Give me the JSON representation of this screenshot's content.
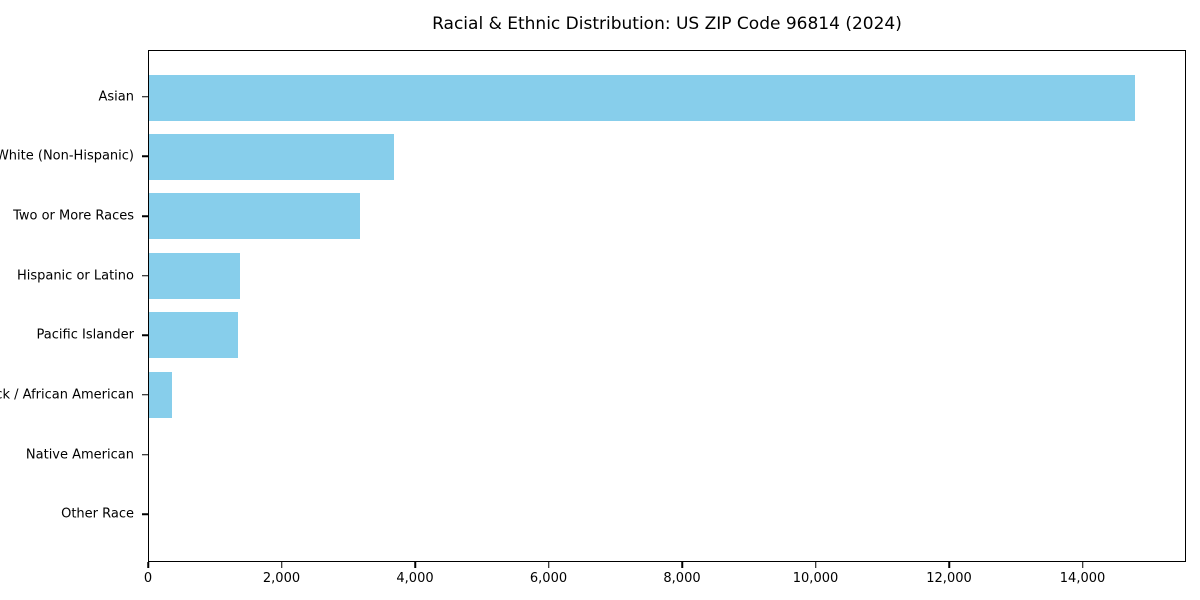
{
  "title": "Racial & Ethnic Distribution: US ZIP Code 96814 (2024)",
  "chart_data": {
    "type": "bar",
    "orientation": "horizontal",
    "title": "Racial & Ethnic Distribution: US ZIP Code 96814 (2024)",
    "categories": [
      "Asian",
      "White (Non-Hispanic)",
      "Two or More Races",
      "Hispanic or Latino",
      "Pacific Islander",
      "Black / African American",
      "Native American",
      "Other Race"
    ],
    "values": [
      14800,
      3670,
      3160,
      1370,
      1330,
      350,
      0,
      0
    ],
    "xlabel": "",
    "ylabel": "",
    "xlim": [
      0,
      15550
    ],
    "x_ticks": [
      0,
      2000,
      4000,
      6000,
      8000,
      10000,
      12000,
      14000
    ],
    "grid": false,
    "legend": "none",
    "bar_color": "#87CEEB",
    "axis_color": "#000000",
    "text_color": "#000000",
    "background_color": "#ffffff"
  }
}
